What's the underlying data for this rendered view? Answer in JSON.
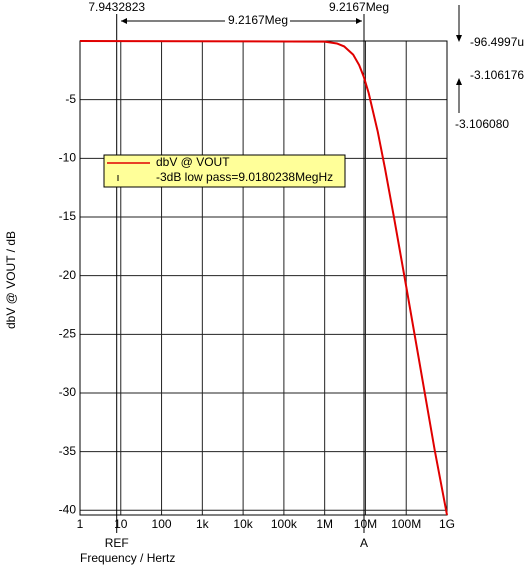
{
  "chart_data": {
    "type": "line",
    "x_label": "Frequency / Hertz",
    "y_label": "dbV @ VOUT / dB",
    "xscale": "log",
    "xlim": [
      1,
      1000000000
    ],
    "ylim": [
      -40.4,
      0
    ],
    "xticks": [
      1,
      10,
      100,
      {
        "value": 1000,
        "label": "1k"
      },
      {
        "value": 10000,
        "label": "10k"
      },
      {
        "value": 100000,
        "label": "100k"
      },
      {
        "value": 1000000,
        "label": "1M"
      },
      {
        "value": 10000000,
        "label": "10M"
      },
      {
        "value": 100000000,
        "label": "100M"
      },
      {
        "value": 1000000000,
        "label": "1G"
      }
    ],
    "yticks": [
      -5,
      -10,
      -15,
      -20,
      -25,
      -30,
      -35,
      -40
    ],
    "grid": true,
    "x": [
      1,
      1000000,
      2000000,
      3000000,
      5000000,
      7000000,
      9018023.8,
      12000000,
      20000000,
      30000000,
      50000000,
      100000000,
      200000000,
      500000000,
      1000000000
    ],
    "series": [
      {
        "name": "dbV @ VOUT",
        "color": "#e00000",
        "values": [
          0,
          -0.05,
          -0.21,
          -0.46,
          -1.16,
          -2.05,
          -3.01,
          -4.43,
          -7.72,
          -10.82,
          -15.02,
          -20.93,
          -26.93,
          -34.88,
          -40.4
        ]
      }
    ],
    "legend_note": "-3dB low pass=9.0180238MegHz",
    "cursors": [
      {
        "name": "REF",
        "x": {
          "value": 7.9432823,
          "label": "7.9432823"
        }
      },
      {
        "name": "A",
        "x": {
          "value": 9216700,
          "label": "9.2167Meg"
        }
      }
    ],
    "delta_x": "9.2167Meg",
    "readouts": [
      "-96.4997u",
      "-3.106176",
      "-3.106080"
    ]
  }
}
